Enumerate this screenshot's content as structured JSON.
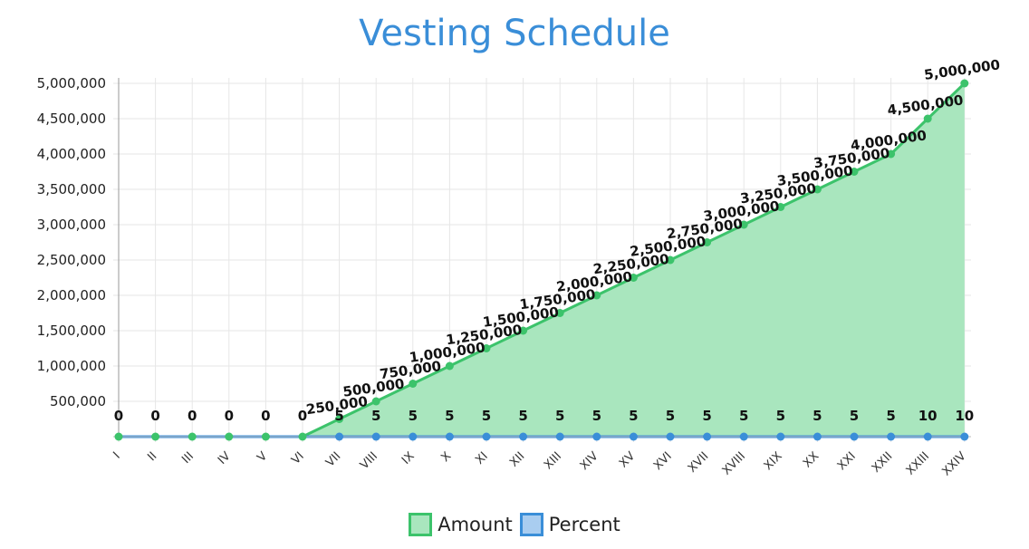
{
  "chart_data": {
    "type": "area",
    "title": "Vesting Schedule",
    "categories": [
      "I",
      "II",
      "III",
      "IV",
      "V",
      "VI",
      "VII",
      "VIII",
      "IX",
      "X",
      "XI",
      "XII",
      "XIII",
      "XIV",
      "XV",
      "XVI",
      "XVII",
      "XVIII",
      "XIX",
      "XX",
      "XXI",
      "XXII",
      "XXIII",
      "XXIV"
    ],
    "series": [
      {
        "name": "Amount",
        "values": [
          0,
          0,
          0,
          0,
          0,
          0,
          250000,
          500000,
          750000,
          1000000,
          1250000,
          1500000,
          1750000,
          2000000,
          2250000,
          2500000,
          2750000,
          3000000,
          3250000,
          3500000,
          3750000,
          4000000,
          4500000,
          5000000
        ],
        "labels": [
          "",
          "",
          "",
          "",
          "",
          "",
          "250,000",
          "500,000",
          "750,000",
          "1,000,000",
          "1,250,000",
          "1,500,000",
          "1,750,000",
          "2,000,000",
          "2,250,000",
          "2,500,000",
          "2,750,000",
          "3,000,000",
          "3,250,000",
          "3,500,000",
          "3,750,000",
          "4,000,000",
          "4,500,000",
          "5,000,000"
        ],
        "line_color": "#3cc36b",
        "fill_color": "#a9e6be"
      },
      {
        "name": "Percent",
        "values": [
          0,
          0,
          0,
          0,
          0,
          0,
          5,
          5,
          5,
          5,
          5,
          5,
          5,
          5,
          5,
          5,
          5,
          5,
          5,
          5,
          5,
          5,
          10,
          10
        ],
        "labels": [
          "0",
          "0",
          "0",
          "0",
          "0",
          "0",
          "5",
          "5",
          "5",
          "5",
          "5",
          "5",
          "5",
          "5",
          "5",
          "5",
          "5",
          "5",
          "5",
          "5",
          "5",
          "5",
          "10",
          "10"
        ],
        "line_color": "#3a8ed8",
        "fill_color": "#a9cdf0"
      }
    ],
    "y_ticks": [
      "5,000,000",
      "4,500,000",
      "4,000,000",
      "3,500,000",
      "3,000,000",
      "2,500,000",
      "2,000,000",
      "1,500,000",
      "1,000,000",
      "500,000"
    ],
    "ylim": [
      0,
      5000000
    ],
    "grid": true,
    "legend_position": "bottom"
  }
}
